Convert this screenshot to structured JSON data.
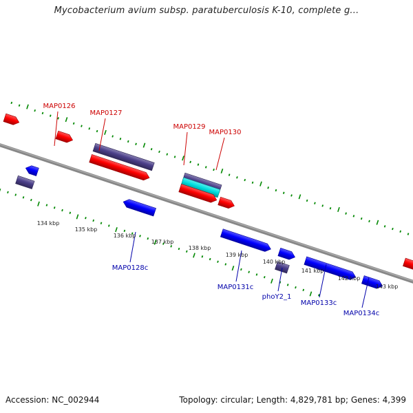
{
  "header": {
    "title": "Mycobacterium avium subsp. paratuberculosis K-10, complete g..."
  },
  "footer": {
    "accession": "Accession: NC_002944",
    "summary": "Topology: circular; Length: 4,829,781 bp; Genes: 4,399"
  },
  "colors": {
    "forward_gene": "#ff0000",
    "reverse_gene": "#0000ff",
    "other_feature": "#4b3f8a",
    "highlight_feature": "#00e0e0",
    "backbone": "#888888",
    "tick_marks": "#008800",
    "forward_label": "#cc0000",
    "reverse_label": "#0000aa",
    "scale_label": "#222222"
  },
  "scale_labels": [
    "134 kbp",
    "135 kbp",
    "136 kbp",
    "137 kbp",
    "138 kbp",
    "139 kbp",
    "140 kbp",
    "141 kbp",
    "142 kbp",
    "143 kbp"
  ],
  "forward_gene_labels": [
    "MAP0126",
    "MAP0127",
    "MAP0129",
    "MAP0130"
  ],
  "reverse_gene_labels": [
    "MAP0128c",
    "MAP0131c",
    "phoY2_1",
    "MAP0133c",
    "MAP0134c"
  ]
}
